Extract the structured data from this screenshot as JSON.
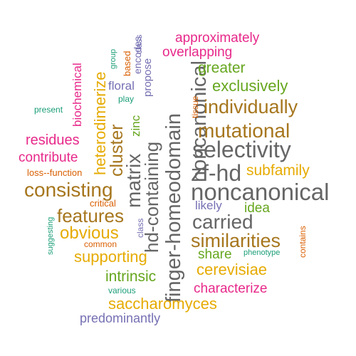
{
  "word_cloud": {
    "palette": {
      "teal": "#1b9e77",
      "orange": "#d95f02",
      "purple": "#7570b3",
      "magenta": "#e7298a",
      "green": "#66a61e",
      "gold": "#e6ab02",
      "brown": "#a6761d",
      "gray": "#666666"
    },
    "words": [
      {
        "text": "finger-homeodomain",
        "color": "#666666",
        "orientation": "vertical"
      },
      {
        "text": "noncanonical",
        "color": "#666666",
        "orientation": "horizontal"
      },
      {
        "text": "hd-containing",
        "color": "#666666",
        "orientation": "vertical"
      },
      {
        "text": "selectivity",
        "color": "#666666",
        "orientation": "horizontal"
      },
      {
        "text": "zf-hd",
        "color": "#666666",
        "orientation": "horizontal"
      },
      {
        "text": "matrix",
        "color": "#666666",
        "orientation": "vertical"
      },
      {
        "text": "mutational",
        "color": "#a6761d",
        "orientation": "horizontal"
      },
      {
        "text": "individually",
        "color": "#a6761d",
        "orientation": "horizontal"
      },
      {
        "text": "similarities",
        "color": "#a6761d",
        "orientation": "horizontal"
      },
      {
        "text": "carried",
        "color": "#666666",
        "orientation": "horizontal"
      },
      {
        "text": "consisting",
        "color": "#a6761d",
        "orientation": "horizontal"
      },
      {
        "text": "features",
        "color": "#a6761d",
        "orientation": "horizontal"
      },
      {
        "text": "cluster",
        "color": "#a6761d",
        "orientation": "vertical"
      },
      {
        "text": "heterodimerize",
        "color": "#e6ab02",
        "orientation": "vertical"
      },
      {
        "text": "obvious",
        "color": "#e6ab02",
        "orientation": "horizontal"
      },
      {
        "text": "supporting",
        "color": "#e6ab02",
        "orientation": "horizontal"
      },
      {
        "text": "saccharomyces",
        "color": "#e6ab02",
        "orientation": "horizontal"
      },
      {
        "text": "cerevisiae",
        "color": "#e6ab02",
        "orientation": "horizontal"
      },
      {
        "text": "subfamily",
        "color": "#e6ab02",
        "orientation": "horizontal"
      },
      {
        "text": "exclusively",
        "color": "#66a61e",
        "orientation": "horizontal"
      },
      {
        "text": "intrinsic",
        "color": "#66a61e",
        "orientation": "horizontal"
      },
      {
        "text": "greater",
        "color": "#66a61e",
        "orientation": "horizontal"
      },
      {
        "text": "idea",
        "color": "#66a61e",
        "orientation": "horizontal"
      },
      {
        "text": "share",
        "color": "#66a61e",
        "orientation": "horizontal"
      },
      {
        "text": "zinc",
        "color": "#66a61e",
        "orientation": "vertical"
      },
      {
        "text": "characterize",
        "color": "#e7298a",
        "orientation": "horizontal"
      },
      {
        "text": "overlapping",
        "color": "#e7298a",
        "orientation": "horizontal"
      },
      {
        "text": "approximately",
        "color": "#e7298a",
        "orientation": "horizontal"
      },
      {
        "text": "residues",
        "color": "#e7298a",
        "orientation": "horizontal"
      },
      {
        "text": "contribute",
        "color": "#e7298a",
        "orientation": "horizontal"
      },
      {
        "text": "biochemical",
        "color": "#e7298a",
        "orientation": "vertical"
      },
      {
        "text": "loss--function",
        "color": "#d95f02",
        "orientation": "horizontal"
      },
      {
        "text": "critical",
        "color": "#d95f02",
        "orientation": "horizontal"
      },
      {
        "text": "contains",
        "color": "#d95f02",
        "orientation": "vertical"
      },
      {
        "text": "tissue",
        "color": "#d95f02",
        "orientation": "vertical"
      },
      {
        "text": "based",
        "color": "#d95f02",
        "orientation": "vertical"
      },
      {
        "text": "common",
        "color": "#d95f02",
        "orientation": "horizontal"
      },
      {
        "text": "predominantly",
        "color": "#7570b3",
        "orientation": "horizontal"
      },
      {
        "text": "likely",
        "color": "#7570b3",
        "orientation": "horizontal"
      },
      {
        "text": "propose",
        "color": "#7570b3",
        "orientation": "vertical"
      },
      {
        "text": "encodes",
        "color": "#7570b3",
        "orientation": "vertical"
      },
      {
        "text": "floral",
        "color": "#7570b3",
        "orientation": "horizontal"
      },
      {
        "text": "class",
        "color": "#7570b3",
        "orientation": "vertical"
      },
      {
        "text": "present",
        "color": "#1b9e77",
        "orientation": "horizontal"
      },
      {
        "text": "play",
        "color": "#1b9e77",
        "orientation": "horizontal"
      },
      {
        "text": "group",
        "color": "#1b9e77",
        "orientation": "vertical"
      },
      {
        "text": "phenotype",
        "color": "#1b9e77",
        "orientation": "horizontal"
      },
      {
        "text": "various",
        "color": "#1b9e77",
        "orientation": "horizontal"
      },
      {
        "text": "suggesting",
        "color": "#1b9e77",
        "orientation": "vertical"
      }
    ]
  }
}
